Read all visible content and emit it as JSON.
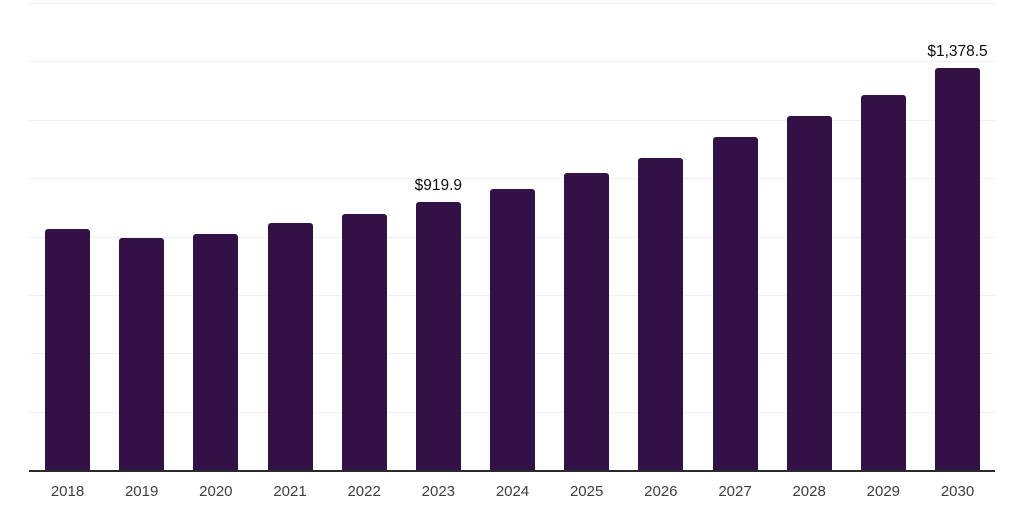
{
  "chart": {
    "background_color": "#ffffff",
    "bar_color": "#321147",
    "axis_color": "#2a2a2a",
    "gridline_color": "#f1f1f3",
    "data_label_color": "#0d0d0d",
    "tick_label_color": "#3d3d3d"
  },
  "chart_data": {
    "type": "bar",
    "title": "",
    "xlabel": "",
    "ylabel": "",
    "categories": [
      "2018",
      "2019",
      "2020",
      "2021",
      "2022",
      "2023",
      "2024",
      "2025",
      "2026",
      "2027",
      "2028",
      "2029",
      "2030"
    ],
    "values": [
      825.4,
      794.0,
      808.1,
      845.1,
      875.7,
      919.9,
      961.2,
      1016.0,
      1070.6,
      1142.3,
      1214.1,
      1285.4,
      1378.5
    ],
    "data_labels": [
      "",
      "",
      "",
      "",
      "",
      "$919.9",
      "",
      "",
      "",
      "",
      "",
      "",
      "$1,378.5"
    ],
    "ylim": [
      0,
      1600
    ],
    "gridline_step": 200,
    "grid": "horizontal",
    "legend": "none",
    "y_axis_tick_labels": "hidden"
  }
}
